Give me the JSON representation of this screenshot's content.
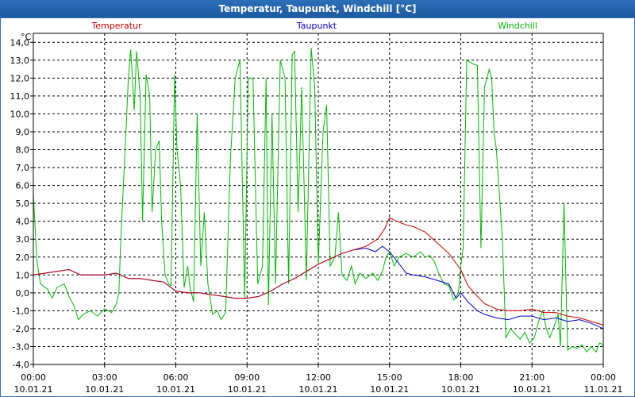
{
  "title": "Temperatur, Taupunkt, Windchill [°C]",
  "chart_data": {
    "type": "line",
    "title": "Temperatur, Taupunkt, Windchill [°C]",
    "ylabel": "°C",
    "xlabel": "",
    "ylim": [
      -4,
      14.5
    ],
    "xlim": [
      0,
      24
    ],
    "y_ticks": [
      "-4,0",
      "-3,0",
      "-2,0",
      "-1,0",
      "0,0",
      "1,0",
      "2,0",
      "3,0",
      "4,0",
      "5,0",
      "6,0",
      "7,0",
      "8,0",
      "9,0",
      "10,0",
      "11,0",
      "12,0",
      "13,0",
      "14,0"
    ],
    "y_tick_values": [
      -4,
      -3,
      -2,
      -1,
      0,
      1,
      2,
      3,
      4,
      5,
      6,
      7,
      8,
      9,
      10,
      11,
      12,
      13,
      14
    ],
    "x_ticks": [
      {
        "time": "00:00",
        "date": "10.01.21",
        "hour": 0
      },
      {
        "time": "03:00",
        "date": "10.01.21",
        "hour": 3
      },
      {
        "time": "06:00",
        "date": "10.01.21",
        "hour": 6
      },
      {
        "time": "09:00",
        "date": "10.01.21",
        "hour": 9
      },
      {
        "time": "12:00",
        "date": "10.01.21",
        "hour": 12
      },
      {
        "time": "15:00",
        "date": "10.01.21",
        "hour": 15
      },
      {
        "time": "18:00",
        "date": "10.01.21",
        "hour": 18
      },
      {
        "time": "21:00",
        "date": "10.01.21",
        "hour": 21
      },
      {
        "time": "00:00",
        "date": "11.01.21",
        "hour": 24
      }
    ],
    "grid": true,
    "series": [
      {
        "name": "Temperatur",
        "color": "#cc0000",
        "points": [
          [
            0,
            1.0
          ],
          [
            0.5,
            1.1
          ],
          [
            1,
            1.2
          ],
          [
            1.5,
            1.3
          ],
          [
            2,
            1.0
          ],
          [
            2.5,
            1.0
          ],
          [
            3,
            1.0
          ],
          [
            3.5,
            1.1
          ],
          [
            4,
            0.8
          ],
          [
            4.5,
            0.8
          ],
          [
            5,
            0.7
          ],
          [
            5.5,
            0.6
          ],
          [
            6,
            0.1
          ],
          [
            6.5,
            0.0
          ],
          [
            7,
            0.0
          ],
          [
            7.5,
            -0.1
          ],
          [
            8,
            -0.2
          ],
          [
            8.5,
            -0.3
          ],
          [
            9,
            -0.3
          ],
          [
            9.5,
            -0.2
          ],
          [
            10,
            0.1
          ],
          [
            10.5,
            0.5
          ],
          [
            11,
            0.8
          ],
          [
            11.5,
            1.2
          ],
          [
            12,
            1.6
          ],
          [
            12.5,
            1.9
          ],
          [
            13,
            2.2
          ],
          [
            13.5,
            2.4
          ],
          [
            14,
            2.6
          ],
          [
            14.5,
            3.0
          ],
          [
            14.8,
            3.6
          ],
          [
            15,
            4.2
          ],
          [
            15.3,
            4.0
          ],
          [
            15.7,
            3.8
          ],
          [
            16,
            3.7
          ],
          [
            16.5,
            3.4
          ],
          [
            17,
            2.8
          ],
          [
            17.5,
            2.2
          ],
          [
            18,
            1.3
          ],
          [
            18.3,
            0.4
          ],
          [
            18.7,
            -0.2
          ],
          [
            19,
            -0.6
          ],
          [
            19.5,
            -0.9
          ],
          [
            20,
            -1.0
          ],
          [
            20.5,
            -1.0
          ],
          [
            21,
            -0.9
          ],
          [
            21.5,
            -1.1
          ],
          [
            22,
            -1.1
          ],
          [
            22.5,
            -1.3
          ],
          [
            23,
            -1.4
          ],
          [
            23.5,
            -1.6
          ],
          [
            24,
            -1.8
          ]
        ]
      },
      {
        "name": "Taupunkt",
        "color": "#0000cc",
        "points": [
          [
            0,
            1.0
          ],
          [
            0.5,
            1.1
          ],
          [
            1,
            1.2
          ],
          [
            1.5,
            1.3
          ],
          [
            2,
            1.0
          ],
          [
            2.5,
            1.0
          ],
          [
            3,
            1.0
          ],
          [
            3.5,
            1.1
          ],
          [
            4,
            0.8
          ],
          [
            4.5,
            0.8
          ],
          [
            5,
            0.7
          ],
          [
            5.5,
            0.6
          ],
          [
            6,
            0.1
          ],
          [
            6.5,
            0.0
          ],
          [
            7,
            0.0
          ],
          [
            7.5,
            -0.1
          ],
          [
            8,
            -0.2
          ],
          [
            8.5,
            -0.3
          ],
          [
            9,
            -0.3
          ],
          [
            9.5,
            -0.2
          ],
          [
            10,
            0.1
          ],
          [
            10.5,
            0.5
          ],
          [
            11,
            0.8
          ],
          [
            11.5,
            1.2
          ],
          [
            12,
            1.6
          ],
          [
            12.5,
            1.9
          ],
          [
            13,
            2.2
          ],
          [
            13.5,
            2.4
          ],
          [
            14,
            2.5
          ],
          [
            14.4,
            2.3
          ],
          [
            14.7,
            2.6
          ],
          [
            15,
            2.3
          ],
          [
            15.3,
            1.8
          ],
          [
            15.7,
            1.1
          ],
          [
            16,
            1.0
          ],
          [
            16.5,
            0.9
          ],
          [
            17,
            0.7
          ],
          [
            17.5,
            0.5
          ],
          [
            17.8,
            -0.3
          ],
          [
            18,
            0.0
          ],
          [
            18.3,
            -0.5
          ],
          [
            18.7,
            -1.0
          ],
          [
            19,
            -1.2
          ],
          [
            19.5,
            -1.4
          ],
          [
            20,
            -1.5
          ],
          [
            20.5,
            -1.3
          ],
          [
            21,
            -1.3
          ],
          [
            21.5,
            -1.5
          ],
          [
            22,
            -1.4
          ],
          [
            22.5,
            -1.6
          ],
          [
            23,
            -1.5
          ],
          [
            23.5,
            -1.7
          ],
          [
            24,
            -2.0
          ]
        ]
      },
      {
        "name": "Windchill",
        "color": "#00bb00",
        "points": [
          [
            0,
            5.5
          ],
          [
            0.15,
            1.8
          ],
          [
            0.3,
            0.5
          ],
          [
            0.6,
            0.2
          ],
          [
            0.8,
            -0.3
          ],
          [
            1.0,
            0.3
          ],
          [
            1.3,
            0.5
          ],
          [
            1.5,
            -0.2
          ],
          [
            1.7,
            -0.7
          ],
          [
            1.9,
            -1.5
          ],
          [
            2.1,
            -1.2
          ],
          [
            2.4,
            -1.0
          ],
          [
            2.7,
            -1.3
          ],
          [
            3.0,
            -0.9
          ],
          [
            3.3,
            -1.1
          ],
          [
            3.5,
            -0.6
          ],
          [
            3.6,
            0.0
          ],
          [
            3.7,
            3.5
          ],
          [
            3.9,
            9.0
          ],
          [
            4.0,
            12.0
          ],
          [
            4.1,
            13.6
          ],
          [
            4.25,
            10.2
          ],
          [
            4.35,
            13.5
          ],
          [
            4.5,
            11.0
          ],
          [
            4.6,
            4.0
          ],
          [
            4.75,
            12.2
          ],
          [
            4.9,
            11.0
          ],
          [
            5.0,
            4.5
          ],
          [
            5.15,
            8.0
          ],
          [
            5.3,
            8.5
          ],
          [
            5.4,
            4.0
          ],
          [
            5.55,
            1.0
          ],
          [
            5.7,
            0.5
          ],
          [
            5.8,
            0.4
          ],
          [
            5.95,
            12.2
          ],
          [
            6.05,
            8.0
          ],
          [
            6.2,
            6.0
          ],
          [
            6.35,
            0.3
          ],
          [
            6.5,
            1.5
          ],
          [
            6.6,
            0.3
          ],
          [
            6.75,
            -0.5
          ],
          [
            6.9,
            10.0
          ],
          [
            7.05,
            1.5
          ],
          [
            7.2,
            4.5
          ],
          [
            7.35,
            0.5
          ],
          [
            7.55,
            -1.2
          ],
          [
            7.75,
            -1.0
          ],
          [
            7.9,
            -1.5
          ],
          [
            8.1,
            -1.1
          ],
          [
            8.3,
            7.5
          ],
          [
            8.5,
            12.0
          ],
          [
            8.7,
            13.0
          ],
          [
            8.9,
            -0.3
          ],
          [
            9.05,
            12.0
          ],
          [
            9.25,
            12.0
          ],
          [
            9.45,
            0.5
          ],
          [
            9.65,
            1.5
          ],
          [
            9.8,
            12.0
          ],
          [
            9.9,
            -0.7
          ],
          [
            10.05,
            10.0
          ],
          [
            10.2,
            0.5
          ],
          [
            10.4,
            13.0
          ],
          [
            10.6,
            12.0
          ],
          [
            10.75,
            0.5
          ],
          [
            10.9,
            13.3
          ],
          [
            11.0,
            13.5
          ],
          [
            11.15,
            4.5
          ],
          [
            11.3,
            11.5
          ],
          [
            11.5,
            0.7
          ],
          [
            11.7,
            13.7
          ],
          [
            11.85,
            11.5
          ],
          [
            12.0,
            1.6
          ],
          [
            12.2,
            9.0
          ],
          [
            12.35,
            10.5
          ],
          [
            12.5,
            1.5
          ],
          [
            12.7,
            2.0
          ],
          [
            12.85,
            4.5
          ],
          [
            13.0,
            1.0
          ],
          [
            13.2,
            0.7
          ],
          [
            13.4,
            1.5
          ],
          [
            13.55,
            0.5
          ],
          [
            13.75,
            1.1
          ],
          [
            14.0,
            0.8
          ],
          [
            14.3,
            1.1
          ],
          [
            14.5,
            0.7
          ],
          [
            14.7,
            1.2
          ],
          [
            14.85,
            2.0
          ],
          [
            15.0,
            2.3
          ],
          [
            15.2,
            1.5
          ],
          [
            15.4,
            2.0
          ],
          [
            15.7,
            2.2
          ],
          [
            16.0,
            2.0
          ],
          [
            16.3,
            2.3
          ],
          [
            16.5,
            2.0
          ],
          [
            16.7,
            2.1
          ],
          [
            16.9,
            1.7
          ],
          [
            17.1,
            1.0
          ],
          [
            17.3,
            0.5
          ],
          [
            17.5,
            0.4
          ],
          [
            17.7,
            -0.4
          ],
          [
            17.9,
            0.0
          ],
          [
            18.0,
            1.5
          ],
          [
            18.1,
            2.5
          ],
          [
            18.25,
            13.0
          ],
          [
            18.5,
            12.8
          ],
          [
            18.7,
            12.7
          ],
          [
            18.85,
            2.5
          ],
          [
            19.0,
            11.5
          ],
          [
            19.2,
            12.5
          ],
          [
            19.3,
            12.0
          ],
          [
            19.4,
            9.0
          ],
          [
            19.5,
            8.0
          ],
          [
            19.6,
            6.0
          ],
          [
            19.75,
            3.0
          ],
          [
            19.9,
            -2.5
          ],
          [
            20.1,
            -2.0
          ],
          [
            20.3,
            -2.3
          ],
          [
            20.5,
            -2.6
          ],
          [
            20.7,
            -2.2
          ],
          [
            20.9,
            -2.8
          ],
          [
            21.1,
            -2.5
          ],
          [
            21.3,
            -1.5
          ],
          [
            21.45,
            -1.0
          ],
          [
            21.6,
            -2.0
          ],
          [
            21.75,
            -2.5
          ],
          [
            21.95,
            -1.8
          ],
          [
            22.1,
            -1.2
          ],
          [
            22.2,
            -3.0
          ],
          [
            22.35,
            5.0
          ],
          [
            22.5,
            -3.2
          ],
          [
            22.7,
            -3.0
          ],
          [
            22.9,
            -3.1
          ],
          [
            23.1,
            -2.9
          ],
          [
            23.3,
            -3.3
          ],
          [
            23.5,
            -3.0
          ],
          [
            23.7,
            -3.3
          ],
          [
            23.85,
            -2.8
          ],
          [
            24.0,
            -2.9
          ]
        ]
      }
    ]
  }
}
